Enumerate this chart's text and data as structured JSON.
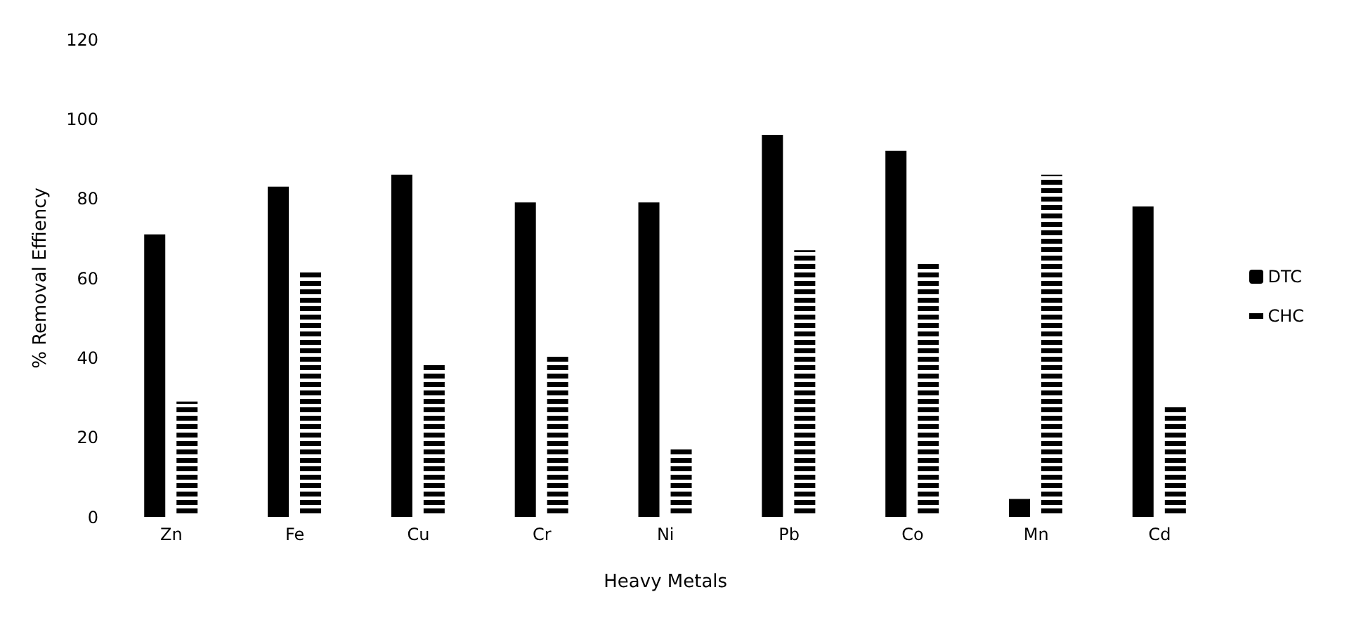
{
  "chart_data": {
    "type": "bar",
    "xlabel": "Heavy Metals",
    "ylabel": "% Removal Effiency",
    "categories": [
      "Zn",
      "Fe",
      "Cu",
      "Cr",
      "Ni",
      "Pb",
      "Co",
      "Mn",
      "Cd"
    ],
    "series": [
      {
        "name": "DTC",
        "color": "#000000",
        "values": [
          71,
          83,
          86,
          79,
          79,
          96,
          92,
          4.5,
          78
        ]
      },
      {
        "name": "CHC",
        "color": "#000000",
        "values": [
          29,
          62,
          39,
          41,
          17,
          67,
          64,
          86,
          28
        ]
      }
    ],
    "ylim": [
      0,
      120
    ],
    "yticks": [
      0,
      20,
      40,
      60,
      80,
      100,
      120
    ],
    "grid": false,
    "legend": "right"
  }
}
